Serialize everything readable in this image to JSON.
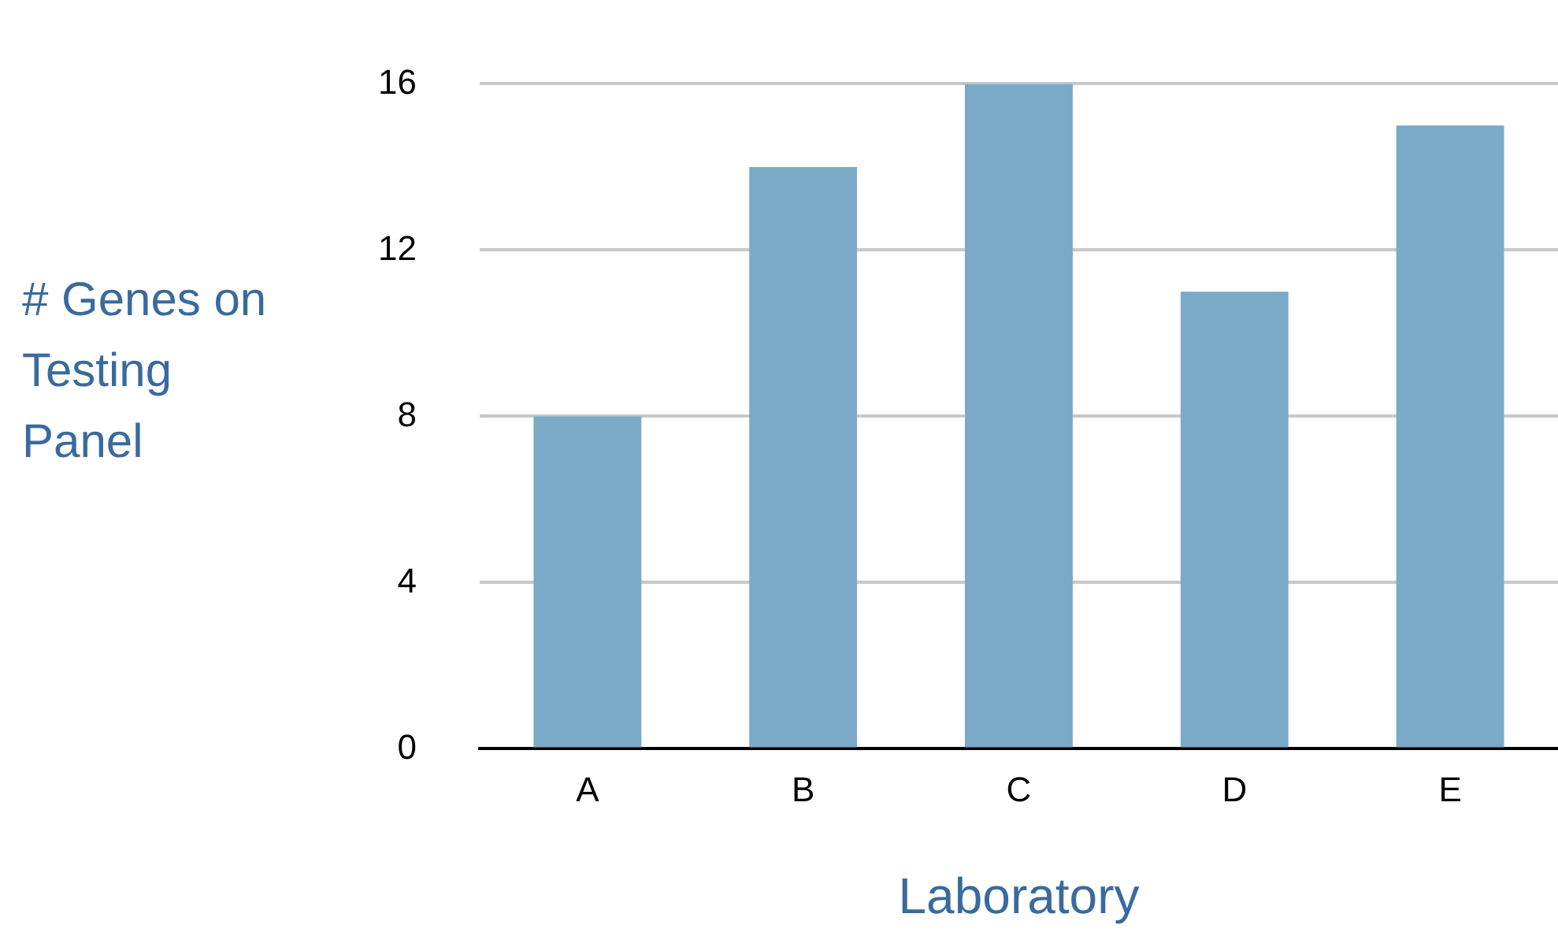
{
  "chart_data": {
    "type": "bar",
    "xlabel": "Laboratory",
    "ylabel": "# Genes on Testing Panel",
    "categories": [
      "A",
      "B",
      "C",
      "D",
      "E"
    ],
    "values": [
      8,
      14,
      16,
      11,
      15
    ],
    "color": "#7aaac8",
    "ylim": [
      0,
      16
    ],
    "yticks": [
      0,
      4,
      8,
      12,
      16
    ],
    "grid": "y",
    "legend": false
  }
}
